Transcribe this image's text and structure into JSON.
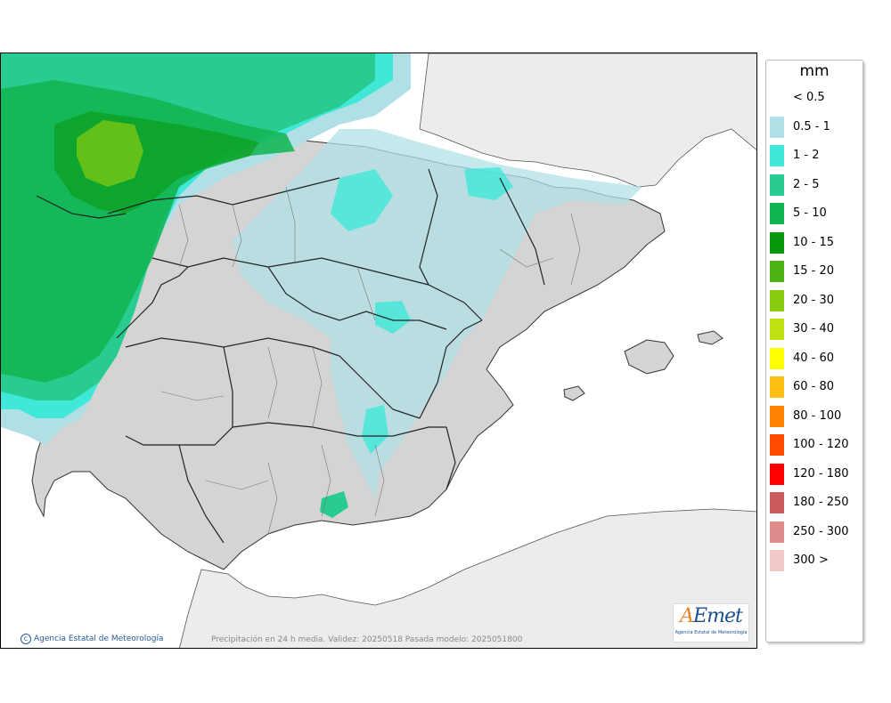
{
  "map": {
    "copyright": "Agencia Estatal de Meteorología",
    "caption": "Precipitación en 24 h media. Validez: 20250518 Pasada modelo: 2025051800",
    "logo_text": "AEmet",
    "logo_subtitle": "Agencia Estatal de Meteorología"
  },
  "legend": {
    "title": "mm",
    "items": [
      {
        "label": "< 0.5",
        "color": "#ffffff"
      },
      {
        "label": "0.5 - 1",
        "color": "#b0e0e6"
      },
      {
        "label": "1 - 2",
        "color": "#40e8d8"
      },
      {
        "label": "2 - 5",
        "color": "#28cc90"
      },
      {
        "label": "5 - 10",
        "color": "#10b450"
      },
      {
        "label": "10 - 15",
        "color": "#08960a"
      },
      {
        "label": "15 - 20",
        "color": "#4cb414"
      },
      {
        "label": "20 - 30",
        "color": "#88cc10"
      },
      {
        "label": "30 - 40",
        "color": "#c0e010"
      },
      {
        "label": "40 - 60",
        "color": "#ffff00"
      },
      {
        "label": "60 - 80",
        "color": "#ffbe14"
      },
      {
        "label": "80 - 100",
        "color": "#ff8200"
      },
      {
        "label": "100 - 120",
        "color": "#ff4a00"
      },
      {
        "label": "120 - 180",
        "color": "#ff0000"
      },
      {
        "label": "180 - 250",
        "color": "#cd5a5a"
      },
      {
        "label": "250 - 300",
        "color": "#de8c8c"
      },
      {
        "label": "300 >",
        "color": "#f0c8c8"
      }
    ]
  }
}
